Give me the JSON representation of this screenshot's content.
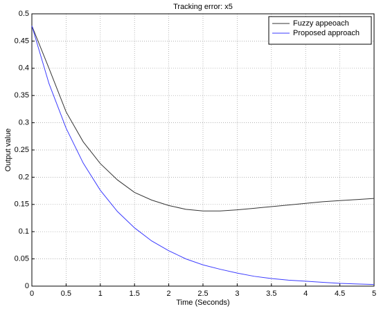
{
  "chart_data": {
    "type": "line",
    "title": "Tracking error: x5",
    "x_label": "Time (Seconds)",
    "y_label": "Output value",
    "x": [
      0,
      0.25,
      0.5,
      0.75,
      1,
      1.25,
      1.5,
      1.75,
      2,
      2.25,
      2.5,
      2.75,
      3,
      3.25,
      3.5,
      3.75,
      4,
      4.25,
      4.5,
      4.75,
      5
    ],
    "series": [
      {
        "name": "Fuzzy appeoach",
        "color": "#333333",
        "values": [
          0.478,
          0.4,
          0.32,
          0.265,
          0.225,
          0.195,
          0.172,
          0.158,
          0.148,
          0.141,
          0.138,
          0.138,
          0.14,
          0.143,
          0.146,
          0.149,
          0.152,
          0.155,
          0.157,
          0.159,
          0.161
        ]
      },
      {
        "name": "Proposed approach",
        "color": "#3a3aff",
        "values": [
          0.478,
          0.372,
          0.29,
          0.226,
          0.176,
          0.137,
          0.107,
          0.083,
          0.065,
          0.05,
          0.039,
          0.031,
          0.024,
          0.018,
          0.014,
          0.011,
          0.009,
          0.007,
          0.005,
          0.004,
          0.003
        ]
      }
    ],
    "xlim": [
      0,
      5
    ],
    "xticks": [
      0,
      0.5,
      1,
      1.5,
      2,
      2.5,
      3,
      3.5,
      4,
      4.5,
      5
    ],
    "ylim": [
      0,
      0.5
    ],
    "yticks": [
      0,
      0.05,
      0.1,
      0.15,
      0.2,
      0.25,
      0.3,
      0.35,
      0.4,
      0.45,
      0.5
    ],
    "grid": true,
    "legend": "top-right"
  }
}
